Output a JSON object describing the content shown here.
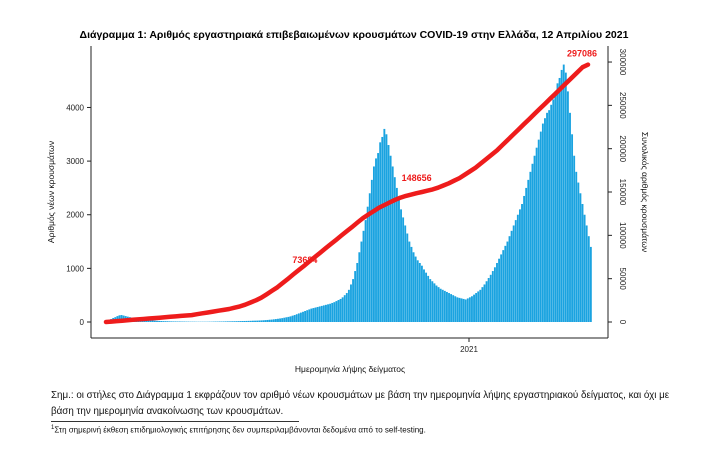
{
  "chart_data": {
    "type": "bar+line",
    "title": "Διάγραμμα 1: Αριθμός εργαστηριακά επιβεβαιωμένων κρουσμάτων COVID-19 στην Ελλάδα, 12 Απριλίου 2021",
    "xlabel": "Ημερομηνία λήψης δείγματος",
    "ylabel_left": "Αριθμός νέων κρουσμάτων",
    "ylabel_right": "Συνολικός αριθμός κρουσμάτων",
    "x_tick_labels": [
      "2021"
    ],
    "y_left_ticks": [
      "0",
      "1000",
      "2000",
      "3000",
      "4000"
    ],
    "y_right_ticks": [
      "0",
      "50000",
      "100000",
      "150000",
      "200000",
      "250000",
      "300000"
    ],
    "ylim_left": [
      0,
      4900
    ],
    "ylim_right": [
      0,
      310000
    ],
    "cumulative_labels": [
      "73684",
      "148656",
      "297086"
    ],
    "bar_color": "#1aa3e0",
    "line_color": "#ee1c1c",
    "series": [
      {
        "name": "Αριθμός νέων κρουσμάτων",
        "kind": "bar",
        "values": [
          20,
          35,
          55,
          75,
          90,
          110,
          125,
          130,
          120,
          110,
          100,
          90,
          80,
          70,
          60,
          55,
          50,
          45,
          40,
          38,
          35,
          30,
          28,
          25,
          22,
          20,
          18,
          16,
          15,
          14,
          12,
          11,
          10,
          10,
          9,
          9,
          8,
          8,
          7,
          7,
          6,
          6,
          6,
          5,
          5,
          5,
          5,
          5,
          5,
          6,
          6,
          7,
          8,
          8,
          9,
          9,
          10,
          11,
          12,
          12,
          13,
          14,
          15,
          16,
          17,
          18,
          19,
          20,
          21,
          22,
          24,
          25,
          26,
          28,
          30,
          32,
          35,
          38,
          42,
          45,
          50,
          55,
          60,
          66,
          72,
          80,
          88,
          95,
          105,
          118,
          130,
          145,
          160,
          175,
          190,
          205,
          220,
          235,
          250,
          260,
          270,
          280,
          290,
          300,
          310,
          320,
          330,
          340,
          355,
          370,
          390,
          410,
          430,
          460,
          500,
          540,
          600,
          700,
          800,
          950,
          1100,
          1300,
          1500,
          1700,
          1900,
          2150,
          2400,
          2650,
          2900,
          3050,
          3150,
          3350,
          3450,
          3600,
          3500,
          3300,
          3100,
          2900,
          2700,
          2500,
          2300,
          2100,
          1950,
          1800,
          1650,
          1500,
          1400,
          1300,
          1220,
          1150,
          1100,
          1050,
          980,
          920,
          860,
          800,
          760,
          720,
          680,
          650,
          620,
          600,
          580,
          560,
          540,
          520,
          500,
          480,
          460,
          450,
          440,
          430,
          420,
          440,
          460,
          480,
          510,
          540,
          570,
          600,
          650,
          700,
          760,
          820,
          880,
          950,
          1020,
          1100,
          1180,
          1260,
          1340,
          1420,
          1500,
          1600,
          1700,
          1800,
          1900,
          2000,
          2100,
          2200,
          2350,
          2500,
          2650,
          2800,
          2950,
          3100,
          3250,
          3400,
          3550,
          3700,
          3800,
          3900,
          3950,
          4050,
          4150,
          4300,
          4450,
          4550,
          4700,
          4800,
          4650,
          4300,
          3900,
          3500,
          3100,
          2800,
          2600,
          2400,
          2200,
          2000,
          1800,
          1600,
          1400
        ]
      },
      {
        "name": "Συνολικός αριθμός κρουσμάτων",
        "kind": "line",
        "values": [
          0,
          500,
          1000,
          1500,
          2000,
          2500,
          3000,
          3500,
          4000,
          4500,
          5000,
          5500,
          6000,
          6500,
          7000,
          7500,
          8000,
          9000,
          10000,
          11000,
          12000,
          13000,
          14000,
          15000,
          16500,
          18000,
          20000,
          22500,
          25000,
          28000,
          32000,
          36000,
          40000,
          45000,
          50000,
          55000,
          60000,
          65000,
          70000,
          75000,
          80000,
          85000,
          90000,
          95000,
          100000,
          105000,
          110000,
          115000,
          120000,
          124000,
          128000,
          132000,
          135000,
          138000,
          141000,
          143500,
          145500,
          147000,
          148656,
          150000,
          151500,
          153000,
          155000,
          157500,
          160000,
          163000,
          166000,
          170000,
          174000,
          178000,
          183000,
          188000,
          193000,
          198000,
          204000,
          210000,
          216000,
          222000,
          228000,
          234000,
          240000,
          246000,
          252000,
          258000,
          264000,
          270000,
          276000,
          282000,
          288000,
          294000,
          297086
        ]
      }
    ]
  },
  "notes": {
    "main": "Σημ.: οι στήλες στο Διάγραμμα 1 εκφράζουν τον αριθμό νέων κρουσμάτων με βάση την ημερομηνία λήψης εργαστηριακού δείγματος, και όχι με βάση την ημερομηνία ανακοίνωσης των κρουσμάτων.",
    "footnote_marker": "1",
    "footnote": "Στη σημερινή έκθεση επιδημιολογικής επιτήρησης δεν συμπεριλαμβάνονται δεδομένα από το self-testing."
  }
}
